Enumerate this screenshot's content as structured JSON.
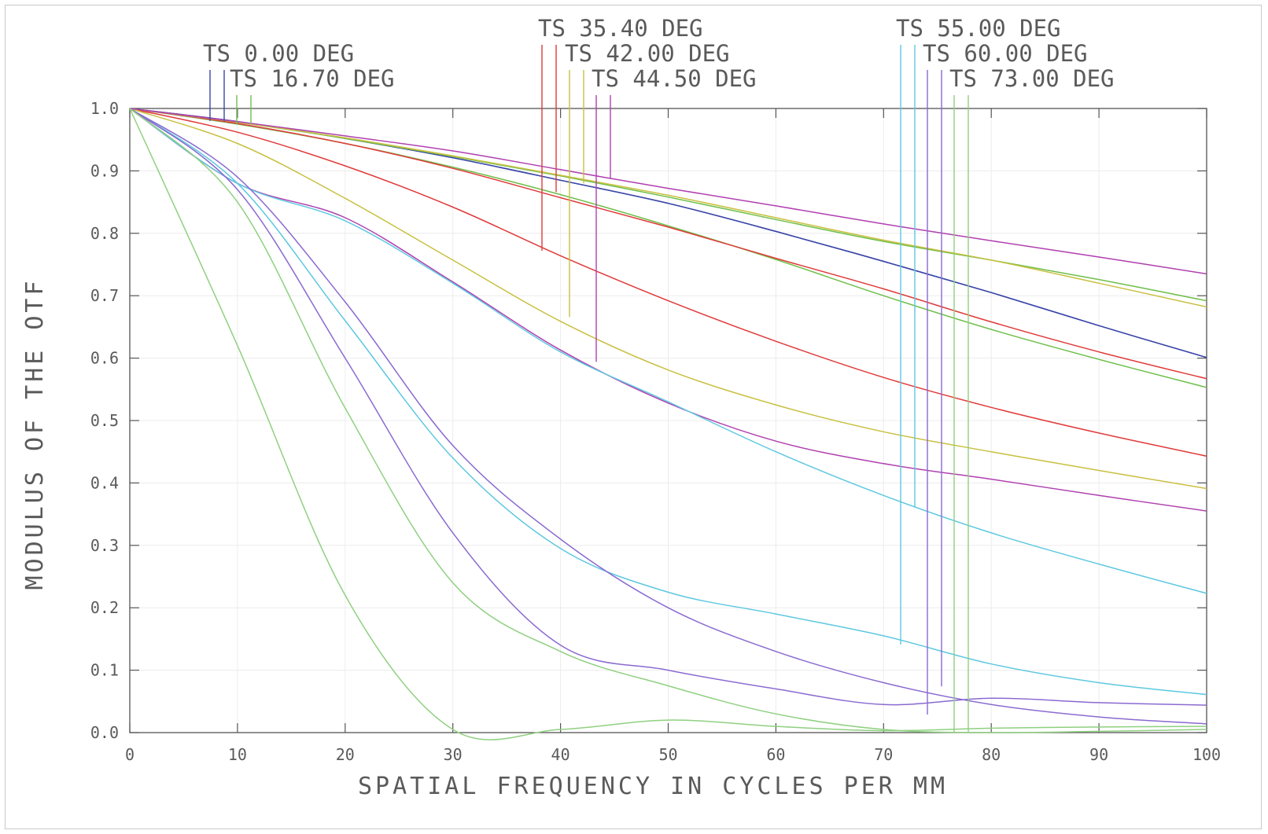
{
  "chart_data": {
    "type": "line",
    "xlabel": "SPATIAL FREQUENCY IN CYCLES PER MM",
    "ylabel": "MODULUS OF THE OTF",
    "xlim": [
      0,
      100
    ],
    "ylim": [
      0,
      1
    ],
    "grid": true,
    "x_ticks": [
      "0",
      "10",
      "20",
      "30",
      "40",
      "50",
      "60",
      "70",
      "80",
      "90",
      "100"
    ],
    "y_ticks": [
      "0.0",
      "0.1",
      "0.2",
      "0.3",
      "0.4",
      "0.5",
      "0.6",
      "0.7",
      "0.8",
      "0.9",
      "1.0"
    ],
    "x": [
      0,
      10,
      20,
      30,
      40,
      50,
      60,
      70,
      80,
      90,
      100
    ],
    "series": [
      {
        "field": "TS 0.00 DEG",
        "curve": "T",
        "color": "#3a46a8",
        "values": [
          1.0,
          0.979,
          0.952,
          0.921,
          0.885,
          0.848,
          0.803,
          0.755,
          0.705,
          0.652,
          0.601
        ]
      },
      {
        "field": "TS 0.00 DEG",
        "curve": "S",
        "color": "#3a46a8",
        "values": [
          1.0,
          0.979,
          0.952,
          0.921,
          0.885,
          0.848,
          0.803,
          0.755,
          0.705,
          0.652,
          0.601
        ]
      },
      {
        "field": "TS 16.70 DEG",
        "curve": "T",
        "color": "#6fbf4a",
        "values": [
          1.0,
          0.978,
          0.952,
          0.923,
          0.892,
          0.858,
          0.822,
          0.787,
          0.757,
          0.726,
          0.692
        ]
      },
      {
        "field": "TS 16.70 DEG",
        "curve": "S",
        "color": "#6fbf4a",
        "values": [
          1.0,
          0.975,
          0.944,
          0.906,
          0.862,
          0.812,
          0.758,
          0.7,
          0.646,
          0.598,
          0.553
        ]
      },
      {
        "field": "TS 35.40 DEG",
        "curve": "T",
        "color": "#e03a3a",
        "values": [
          1.0,
          0.962,
          0.908,
          0.842,
          0.764,
          0.692,
          0.627,
          0.569,
          0.521,
          0.48,
          0.443
        ]
      },
      {
        "field": "TS 35.40 DEG",
        "curve": "S",
        "color": "#e03a3a",
        "values": [
          1.0,
          0.976,
          0.944,
          0.904,
          0.857,
          0.81,
          0.76,
          0.711,
          0.658,
          0.61,
          0.567
        ]
      },
      {
        "field": "TS 42.00 DEG",
        "curve": "T",
        "color": "#c8c040",
        "values": [
          1.0,
          0.944,
          0.856,
          0.757,
          0.659,
          0.581,
          0.525,
          0.482,
          0.45,
          0.42,
          0.391
        ]
      },
      {
        "field": "TS 42.00 DEG",
        "curve": "S",
        "color": "#c8c040",
        "values": [
          1.0,
          0.978,
          0.953,
          0.924,
          0.893,
          0.861,
          0.825,
          0.789,
          0.757,
          0.72,
          0.682
        ]
      },
      {
        "field": "TS 44.50 DEG",
        "curve": "T",
        "color": "#b040b0",
        "values": [
          1.0,
          0.88,
          0.825,
          0.722,
          0.613,
          0.528,
          0.467,
          0.431,
          0.406,
          0.38,
          0.355
        ]
      },
      {
        "field": "TS 44.50 DEG",
        "curve": "S",
        "color": "#b040b0",
        "values": [
          1.0,
          0.979,
          0.956,
          0.932,
          0.902,
          0.872,
          0.844,
          0.815,
          0.788,
          0.762,
          0.735
        ]
      },
      {
        "field": "TS 55.00 DEG",
        "curve": "T",
        "color": "#5ec8e0",
        "values": [
          1.0,
          0.88,
          0.82,
          0.72,
          0.61,
          0.53,
          0.45,
          0.38,
          0.32,
          0.27,
          0.223
        ]
      },
      {
        "field": "TS 55.00 DEG",
        "curve": "S",
        "color": "#5ec8e0",
        "values": [
          1.0,
          0.88,
          0.66,
          0.44,
          0.295,
          0.225,
          0.19,
          0.155,
          0.11,
          0.08,
          0.061
        ]
      },
      {
        "field": "TS 60.00 DEG",
        "curve": "T",
        "color": "#8a6ad0",
        "values": [
          1.0,
          0.89,
          0.69,
          0.46,
          0.31,
          0.2,
          0.13,
          0.08,
          0.045,
          0.025,
          0.014
        ]
      },
      {
        "field": "TS 60.00 DEG",
        "curve": "S",
        "color": "#8a6ad0",
        "values": [
          1.0,
          0.87,
          0.6,
          0.32,
          0.14,
          0.1,
          0.07,
          0.045,
          0.055,
          0.048,
          0.044
        ]
      },
      {
        "field": "TS 73.00 DEG",
        "curve": "T",
        "color": "#8fd080",
        "values": [
          1.0,
          0.62,
          0.22,
          0.005,
          0.005,
          0.02,
          0.01,
          0.003,
          0.007,
          0.009,
          0.01
        ]
      },
      {
        "field": "TS 73.00 DEG",
        "curve": "S",
        "color": "#8fd080",
        "values": [
          1.0,
          0.85,
          0.52,
          0.24,
          0.13,
          0.075,
          0.03,
          0.005,
          0.0,
          0.002,
          0.005
        ]
      }
    ],
    "legend": [
      {
        "label": "TS 0.00 DEG",
        "color": "#3a46a8",
        "t_end": 0.98,
        "s_end": 0.98
      },
      {
        "label": "TS 16.70 DEG",
        "color": "#6fbf4a",
        "t_end": 0.975,
        "s_end": 0.975
      },
      {
        "label": "TS 35.40 DEG",
        "color": "#e03a3a",
        "t_end": 0.772,
        "s_end": 0.866
      },
      {
        "label": "TS 42.00 DEG",
        "color": "#c8c040",
        "t_end": 0.666,
        "s_end": 0.88
      },
      {
        "label": "TS 44.50 DEG",
        "color": "#b040b0",
        "t_end": 0.594,
        "s_end": 0.887
      },
      {
        "label": "TS 55.00 DEG",
        "color": "#5ec8e0",
        "t_end": 0.141,
        "s_end": 0.361
      },
      {
        "label": "TS 60.00 DEG",
        "color": "#8a6ad0",
        "t_end": 0.029,
        "s_end": 0.074
      },
      {
        "label": "TS 73.00 DEG",
        "color": "#8fd080",
        "t_end": 0.0,
        "s_end": 0.0
      }
    ]
  }
}
